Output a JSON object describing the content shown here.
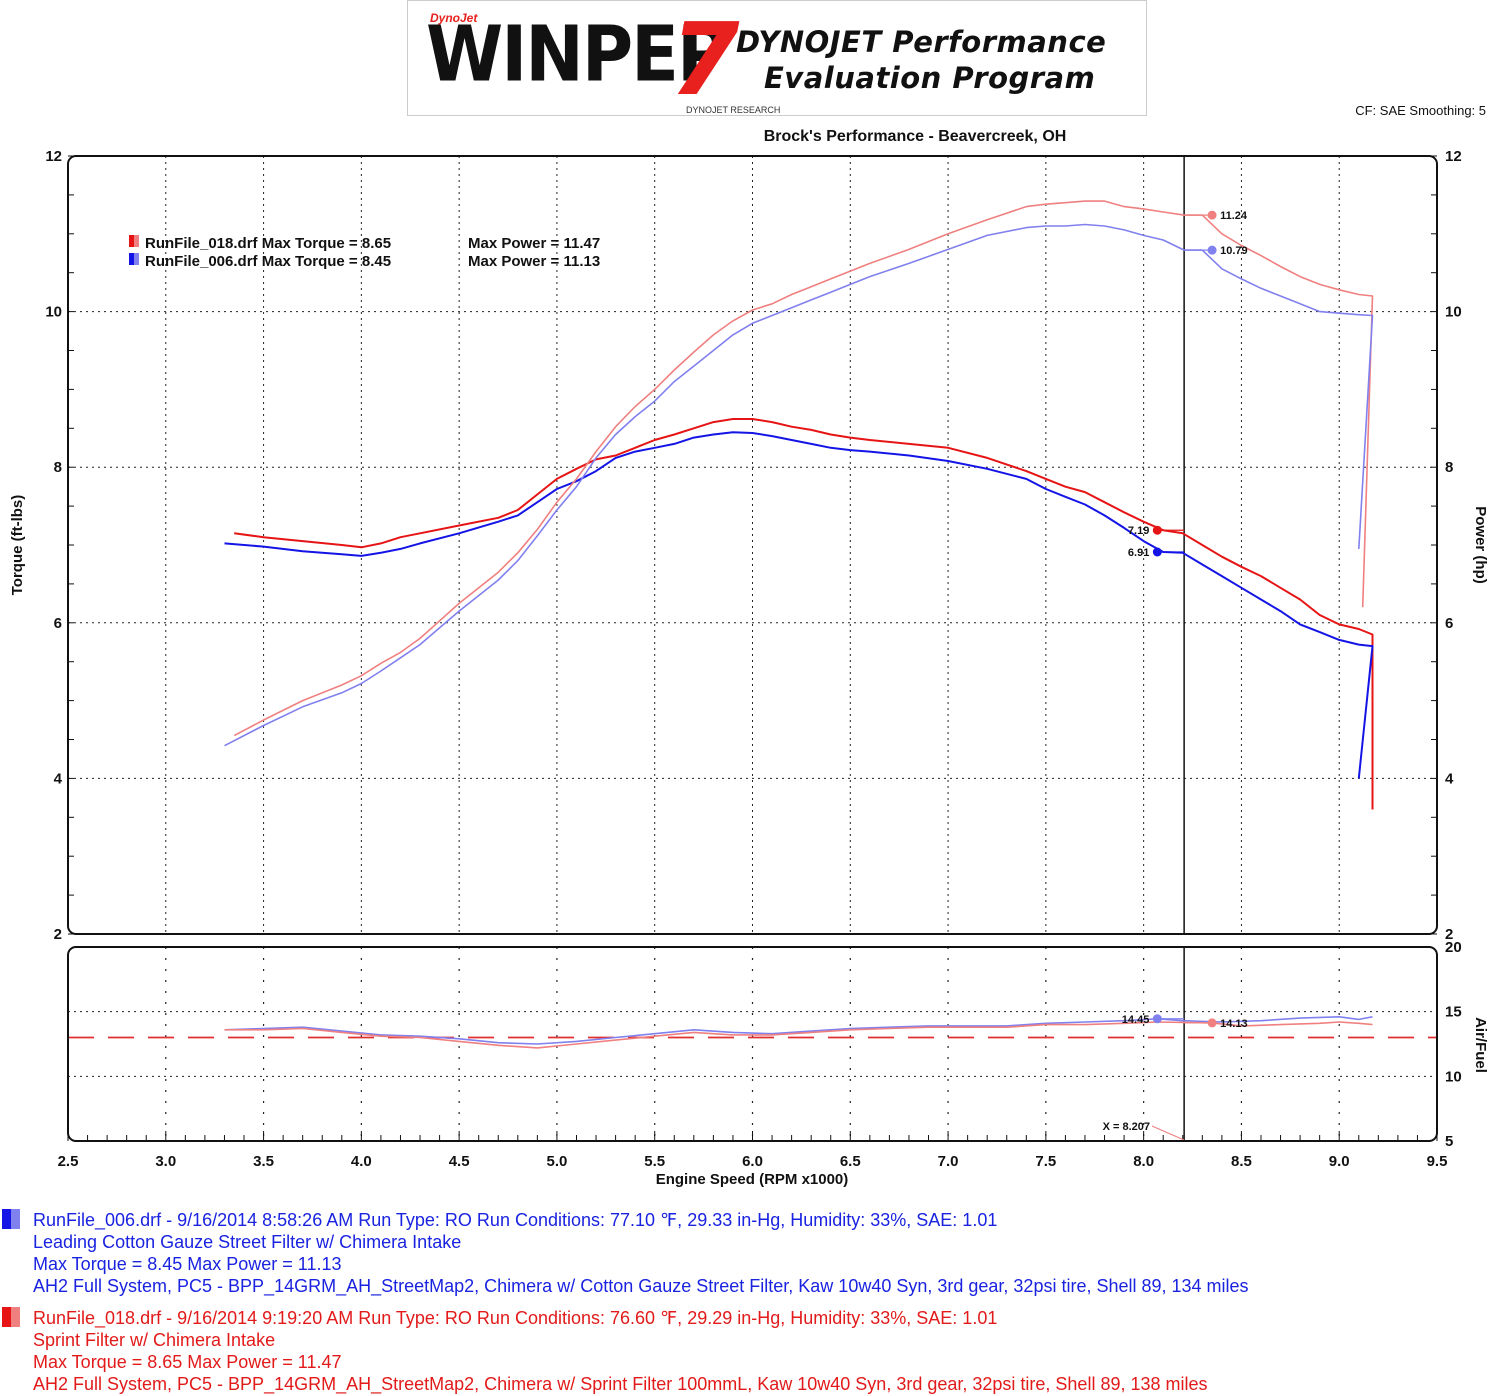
{
  "header": {
    "logo_top": "DynoJet",
    "logo_word": "WINPEP",
    "logo_number": "7",
    "program_line1": "DYNOJET Performance",
    "program_line2": "Evaluation Program",
    "logo_sub": "DYNOJET RESEARCH",
    "cf_smoothing": "CF: SAE  Smoothing: 5",
    "shop": "Brock's Performance - Beavercreek, OH"
  },
  "colors": {
    "run006_torque": "#1414e6",
    "run006_power": "#8080ee",
    "run018_torque": "#e61414",
    "run018_power": "#f08080",
    "ref_line": "#e23030"
  },
  "legend": [
    {
      "label": "RunFile_018.drf Max Torque = 8.65",
      "power": "Max Power = 11.47"
    },
    {
      "label": "RunFile_006.drf Max Torque = 8.45",
      "power": "Max Power = 11.13"
    }
  ],
  "chart_data": [
    {
      "type": "line",
      "ylabel": "Torque (ft-lbs)",
      "y2label": "Power (hp)",
      "xlim": [
        2.5,
        9.5
      ],
      "ylim": [
        2,
        12
      ],
      "y2lim": [
        2,
        12
      ],
      "yticks": [
        "2",
        "4",
        "6",
        "8",
        "10",
        "12"
      ],
      "grid": true,
      "cursor_x": 8.207,
      "series": [
        {
          "name": "RunFile_018.drf",
          "quantity": "torque",
          "x": [
            3.35,
            3.5,
            3.7,
            3.9,
            4.0,
            4.1,
            4.2,
            4.3,
            4.5,
            4.7,
            4.8,
            4.9,
            5.0,
            5.1,
            5.2,
            5.3,
            5.4,
            5.5,
            5.6,
            5.7,
            5.8,
            5.9,
            6.0,
            6.1,
            6.2,
            6.3,
            6.4,
            6.5,
            6.6,
            6.8,
            7.0,
            7.2,
            7.4,
            7.5,
            7.6,
            7.7,
            7.8,
            7.9,
            8.0,
            8.1,
            8.2,
            8.3,
            8.4,
            8.5,
            8.6,
            8.7,
            8.8,
            8.9,
            9.0,
            9.1,
            9.17,
            9.17
          ],
          "y": [
            7.15,
            7.1,
            7.05,
            7.0,
            6.97,
            7.02,
            7.1,
            7.15,
            7.25,
            7.35,
            7.45,
            7.65,
            7.85,
            7.98,
            8.1,
            8.15,
            8.25,
            8.35,
            8.42,
            8.5,
            8.58,
            8.62,
            8.62,
            8.58,
            8.52,
            8.48,
            8.42,
            8.38,
            8.35,
            8.3,
            8.25,
            8.12,
            7.95,
            7.85,
            7.75,
            7.68,
            7.55,
            7.42,
            7.3,
            7.19,
            7.15,
            7.0,
            6.85,
            6.72,
            6.6,
            6.45,
            6.3,
            6.1,
            5.98,
            5.92,
            5.85,
            3.6
          ]
        },
        {
          "name": "RunFile_006.drf",
          "quantity": "torque",
          "x": [
            3.3,
            3.5,
            3.7,
            3.9,
            4.0,
            4.1,
            4.2,
            4.3,
            4.5,
            4.7,
            4.8,
            4.9,
            5.0,
            5.1,
            5.2,
            5.3,
            5.4,
            5.5,
            5.6,
            5.7,
            5.8,
            5.9,
            6.0,
            6.1,
            6.2,
            6.3,
            6.4,
            6.5,
            6.6,
            6.8,
            7.0,
            7.2,
            7.4,
            7.5,
            7.6,
            7.7,
            7.8,
            7.9,
            8.0,
            8.1,
            8.2,
            8.3,
            8.4,
            8.5,
            8.6,
            8.7,
            8.8,
            8.9,
            9.0,
            9.1,
            9.17,
            9.1
          ],
          "y": [
            7.02,
            6.98,
            6.92,
            6.88,
            6.86,
            6.9,
            6.95,
            7.02,
            7.15,
            7.3,
            7.38,
            7.55,
            7.72,
            7.82,
            7.95,
            8.12,
            8.2,
            8.25,
            8.3,
            8.38,
            8.42,
            8.45,
            8.44,
            8.4,
            8.35,
            8.3,
            8.25,
            8.22,
            8.2,
            8.15,
            8.08,
            7.98,
            7.85,
            7.72,
            7.62,
            7.52,
            7.38,
            7.22,
            7.05,
            6.91,
            6.9,
            6.75,
            6.6,
            6.45,
            6.3,
            6.15,
            5.98,
            5.88,
            5.78,
            5.72,
            5.7,
            4.0
          ]
        },
        {
          "name": "RunFile_018.drf",
          "quantity": "power",
          "x": [
            3.35,
            3.5,
            3.7,
            3.9,
            4.0,
            4.1,
            4.2,
            4.3,
            4.5,
            4.7,
            4.8,
            4.9,
            5.0,
            5.1,
            5.2,
            5.3,
            5.4,
            5.5,
            5.6,
            5.7,
            5.8,
            5.9,
            6.0,
            6.1,
            6.2,
            6.3,
            6.4,
            6.5,
            6.6,
            6.8,
            7.0,
            7.2,
            7.4,
            7.5,
            7.6,
            7.7,
            7.8,
            7.9,
            8.0,
            8.1,
            8.207,
            8.3,
            8.4,
            8.5,
            8.6,
            8.7,
            8.8,
            8.9,
            9.0,
            9.1,
            9.17,
            9.12
          ],
          "y": [
            4.55,
            4.75,
            5.0,
            5.2,
            5.32,
            5.48,
            5.62,
            5.8,
            6.25,
            6.65,
            6.9,
            7.2,
            7.55,
            7.85,
            8.2,
            8.52,
            8.78,
            9.0,
            9.25,
            9.48,
            9.7,
            9.88,
            10.02,
            10.1,
            10.22,
            10.32,
            10.42,
            10.52,
            10.62,
            10.8,
            11.0,
            11.18,
            11.35,
            11.38,
            11.4,
            11.42,
            11.42,
            11.35,
            11.32,
            11.28,
            11.24,
            11.24,
            11.0,
            10.85,
            10.72,
            10.58,
            10.45,
            10.35,
            10.28,
            10.22,
            10.2,
            6.2
          ]
        },
        {
          "name": "RunFile_006.drf",
          "quantity": "power",
          "x": [
            3.3,
            3.5,
            3.7,
            3.9,
            4.0,
            4.1,
            4.2,
            4.3,
            4.5,
            4.7,
            4.8,
            4.9,
            5.0,
            5.1,
            5.2,
            5.3,
            5.4,
            5.5,
            5.6,
            5.7,
            5.8,
            5.9,
            6.0,
            6.1,
            6.2,
            6.3,
            6.4,
            6.5,
            6.6,
            6.8,
            7.0,
            7.2,
            7.4,
            7.5,
            7.6,
            7.7,
            7.8,
            7.9,
            8.0,
            8.1,
            8.207,
            8.3,
            8.4,
            8.5,
            8.6,
            8.7,
            8.8,
            8.9,
            9.0,
            9.1,
            9.17,
            9.1
          ],
          "y": [
            4.42,
            4.68,
            4.92,
            5.1,
            5.22,
            5.38,
            5.55,
            5.72,
            6.15,
            6.55,
            6.8,
            7.12,
            7.45,
            7.75,
            8.12,
            8.42,
            8.65,
            8.85,
            9.1,
            9.3,
            9.5,
            9.7,
            9.85,
            9.95,
            10.05,
            10.15,
            10.25,
            10.35,
            10.45,
            10.62,
            10.8,
            10.98,
            11.08,
            11.1,
            11.1,
            11.12,
            11.1,
            11.05,
            10.98,
            10.92,
            10.79,
            10.79,
            10.55,
            10.42,
            10.3,
            10.2,
            10.1,
            10.0,
            9.98,
            9.96,
            9.95,
            6.95
          ]
        }
      ],
      "cursor_labels": [
        {
          "label": "11.24",
          "x": 8.35,
          "y": 11.24,
          "series": "RunFile_018.drf power"
        },
        {
          "label": "10.79",
          "x": 8.35,
          "y": 10.79,
          "series": "RunFile_006.drf power"
        },
        {
          "label": "7.19",
          "x": 8.07,
          "y": 7.19,
          "series": "RunFile_018.drf torque"
        },
        {
          "label": "6.91",
          "x": 8.07,
          "y": 6.91,
          "series": "RunFile_006.drf torque"
        }
      ]
    },
    {
      "type": "line",
      "xlabel": "Engine Speed (RPM x1000)",
      "ylabel": "Air/Fuel",
      "xlim": [
        2.5,
        9.5
      ],
      "ylim": [
        5,
        20
      ],
      "yticks": [
        "5",
        "10",
        "15",
        "20"
      ],
      "xticks": [
        "2.5",
        "3.0",
        "3.5",
        "4.0",
        "4.5",
        "5.0",
        "5.5",
        "6.0",
        "6.5",
        "7.0",
        "7.5",
        "8.0",
        "8.5",
        "9.0",
        "9.5"
      ],
      "reference_line": 13.0,
      "cursor_x": 8.207,
      "cursor_readout": "X = 8.207",
      "series": [
        {
          "name": "RunFile_006.drf",
          "x": [
            3.3,
            3.5,
            3.7,
            3.9,
            4.1,
            4.3,
            4.5,
            4.7,
            4.9,
            5.1,
            5.3,
            5.5,
            5.7,
            5.9,
            6.1,
            6.3,
            6.5,
            6.7,
            6.9,
            7.1,
            7.3,
            7.5,
            7.7,
            7.9,
            8.07,
            8.2,
            8.4,
            8.6,
            8.8,
            9.0,
            9.1,
            9.17
          ],
          "y": [
            13.6,
            13.7,
            13.8,
            13.5,
            13.2,
            13.1,
            12.9,
            12.6,
            12.5,
            12.7,
            13.0,
            13.3,
            13.6,
            13.4,
            13.3,
            13.5,
            13.7,
            13.8,
            13.9,
            13.9,
            13.9,
            14.1,
            14.2,
            14.3,
            14.45,
            14.3,
            14.2,
            14.3,
            14.5,
            14.6,
            14.4,
            14.6
          ]
        },
        {
          "name": "RunFile_018.drf",
          "x": [
            3.3,
            3.5,
            3.7,
            3.9,
            4.1,
            4.3,
            4.5,
            4.7,
            4.9,
            5.1,
            5.3,
            5.5,
            5.7,
            5.9,
            6.1,
            6.3,
            6.5,
            6.7,
            6.9,
            7.1,
            7.3,
            7.5,
            7.7,
            7.9,
            8.07,
            8.35,
            8.5,
            8.7,
            8.9,
            9.0,
            9.1,
            9.17
          ],
          "y": [
            13.6,
            13.6,
            13.7,
            13.4,
            13.1,
            13.0,
            12.7,
            12.4,
            12.2,
            12.5,
            12.8,
            13.1,
            13.4,
            13.2,
            13.2,
            13.4,
            13.6,
            13.7,
            13.8,
            13.8,
            13.8,
            14.0,
            14.0,
            14.1,
            14.2,
            14.13,
            13.9,
            14.0,
            14.1,
            14.2,
            14.1,
            14.0
          ]
        }
      ],
      "cursor_labels": [
        {
          "label": "14.45",
          "x": 8.07,
          "y": 14.45,
          "series": "RunFile_006.drf"
        },
        {
          "label": "14.13",
          "x": 8.35,
          "y": 14.13,
          "series": "RunFile_018.drf"
        }
      ]
    }
  ],
  "run_info": {
    "run006": {
      "line1": "RunFile_006.drf - 9/16/2014 8:58:26 AM  Run Type: RO  Run Conditions: 77.10 ℉, 29.33 in-Hg,  Humidity:  33%, SAE: 1.01",
      "line2": "Leading Cotton Gauze Street Filter w/ Chimera Intake",
      "line3": "Max Torque = 8.45  Max Power = 11.13",
      "line4": "AH2 Full System, PC5 - BPP_14GRM_AH_StreetMap2, Chimera w/ Cotton Gauze Street Filter, Kaw 10w40 Syn, 3rd gear, 32psi tire, Shell 89, 134 miles"
    },
    "run018": {
      "line1": "RunFile_018.drf - 9/16/2014 9:19:20 AM  Run Type: RO  Run Conditions: 76.60 ℉, 29.29 in-Hg,  Humidity:  33%, SAE: 1.01",
      "line2": "Sprint Filter w/ Chimera Intake",
      "line3": "Max Torque = 8.65  Max Power = 11.47",
      "line4": "AH2 Full System, PC5 - BPP_14GRM_AH_StreetMap2, Chimera w/ Sprint Filter 100mmL, Kaw 10w40 Syn, 3rd gear, 32psi tire, Shell 89, 138 miles"
    }
  }
}
